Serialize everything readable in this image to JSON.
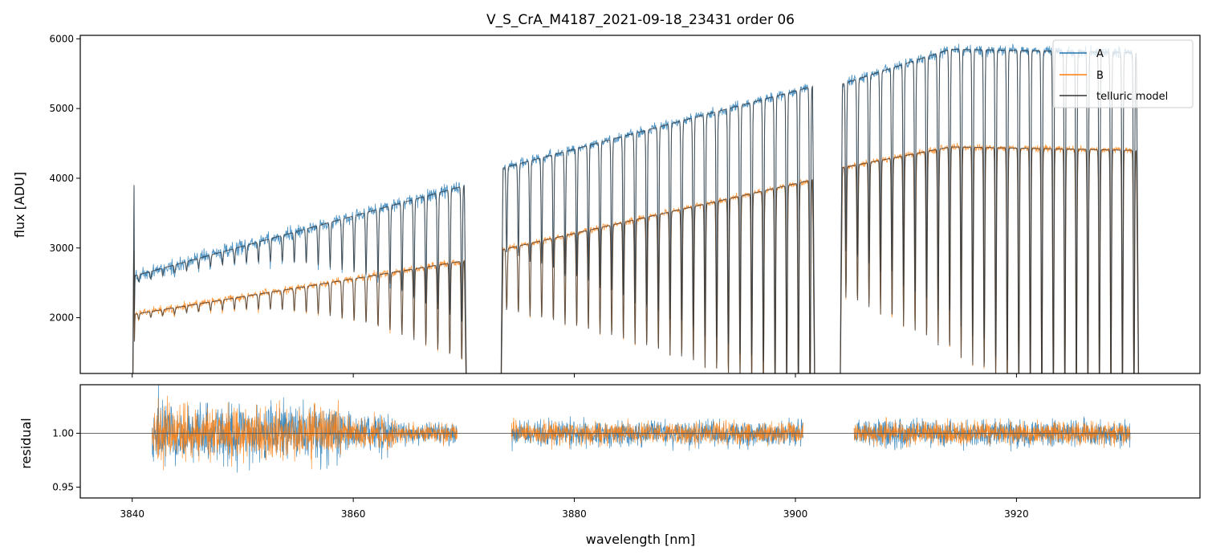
{
  "chart_data": [
    {
      "type": "line",
      "panel": "top",
      "title": "V_S_CrA_M4187_2021-09-18_23431  order 06",
      "xlabel": "",
      "ylabel": "flux [ADU]",
      "xlim": [
        3835.3,
        3936.6
      ],
      "ylim": [
        1200,
        6050
      ],
      "x_ticks": [
        3840,
        3860,
        3880,
        3900,
        3920
      ],
      "y_ticks": [
        2000,
        3000,
        4000,
        5000,
        6000
      ],
      "y_tick_labels": [
        "2000",
        "3000",
        "4000",
        "5000",
        "6000"
      ],
      "legend_position": "top-right",
      "segments": [
        {
          "x_start": 3840.0,
          "x_end": 3870.3,
          "line_count": 28
        },
        {
          "x_start": 3873.3,
          "x_end": 3901.8,
          "line_count": 27
        },
        {
          "x_start": 3904.0,
          "x_end": 3931.1,
          "line_count": 26
        }
      ],
      "series": [
        {
          "name": "A",
          "color": "#1f77b4",
          "continuum": [
            [
              3840.2,
              2600
            ],
            [
              3870.2,
              3900
            ],
            [
              3873.6,
              4150
            ],
            [
              3901.6,
              5320
            ],
            [
              3904.2,
              5350
            ],
            [
              3914.0,
              5850
            ],
            [
              3931.0,
              5800
            ]
          ]
        },
        {
          "name": "B",
          "color": "#ff7f0e",
          "continuum": [
            [
              3840.2,
              2050
            ],
            [
              3870.2,
              2820
            ],
            [
              3873.6,
              2980
            ],
            [
              3901.6,
              3980
            ],
            [
              3904.2,
              4150
            ],
            [
              3914.0,
              4450
            ],
            [
              3931.0,
              4400
            ]
          ]
        },
        {
          "name": "telluric model",
          "color": "#333333"
        }
      ]
    },
    {
      "type": "line",
      "panel": "bottom",
      "title": "",
      "xlabel": "wavelength [nm]",
      "ylabel": "residual",
      "xlim": [
        3835.3,
        3936.6
      ],
      "ylim": [
        0.94,
        1.045
      ],
      "x_ticks": [
        3840,
        3860,
        3880,
        3900,
        3920
      ],
      "x_tick_labels": [
        "3840",
        "3860",
        "3880",
        "3900",
        "3920"
      ],
      "y_ticks": [
        0.95,
        1.0
      ],
      "y_tick_labels": [
        "0.95",
        "1.00"
      ],
      "reference_line": 1.0,
      "segments": [
        {
          "x_start": 3841.8,
          "x_end": 3869.4
        },
        {
          "x_start": 3874.3,
          "x_end": 3900.7
        },
        {
          "x_start": 3905.3,
          "x_end": 3930.3
        }
      ],
      "series": [
        {
          "name": "A",
          "color": "#1f77b4"
        },
        {
          "name": "B",
          "color": "#ff7f0e"
        }
      ]
    }
  ]
}
